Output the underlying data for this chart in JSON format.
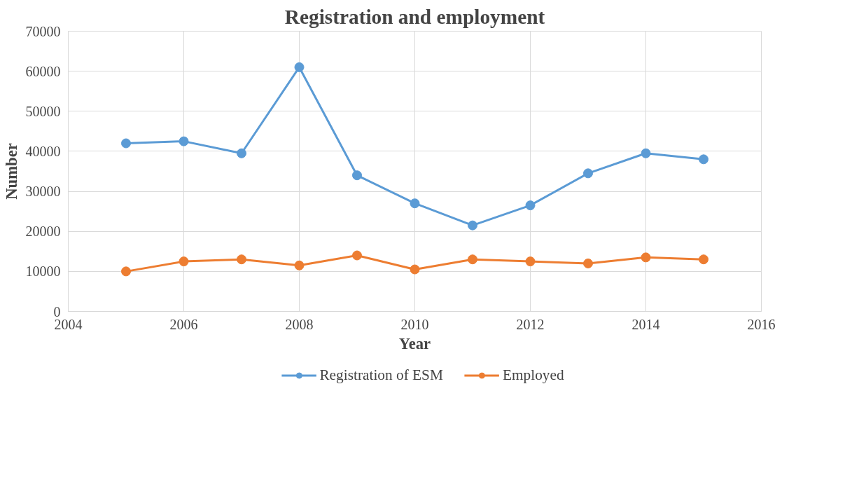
{
  "chart_data": {
    "type": "line",
    "title": "Registration and employment",
    "xlabel": "Year",
    "ylabel": "Number",
    "x": [
      2005,
      2006,
      2007,
      2008,
      2009,
      2010,
      2011,
      2012,
      2013,
      2014,
      2015
    ],
    "series": [
      {
        "name": "Registration of ESM",
        "color": "#5b9bd5",
        "values": [
          42000,
          42500,
          39500,
          61000,
          34000,
          27000,
          21500,
          26500,
          34500,
          39500,
          38000
        ]
      },
      {
        "name": "Employed",
        "color": "#ed7d31",
        "values": [
          10000,
          12500,
          13000,
          11500,
          14000,
          10500,
          13000,
          12500,
          12000,
          13500,
          13000
        ]
      }
    ],
    "xlim": [
      2004,
      2016
    ],
    "xticks": [
      2004,
      2006,
      2008,
      2010,
      2012,
      2014,
      2016
    ],
    "ylim": [
      0,
      70000
    ],
    "yticks": [
      0,
      10000,
      20000,
      30000,
      40000,
      50000,
      60000,
      70000
    ],
    "grid": true,
    "legend": "bottom",
    "marker": "circle",
    "line_style": "solid"
  }
}
